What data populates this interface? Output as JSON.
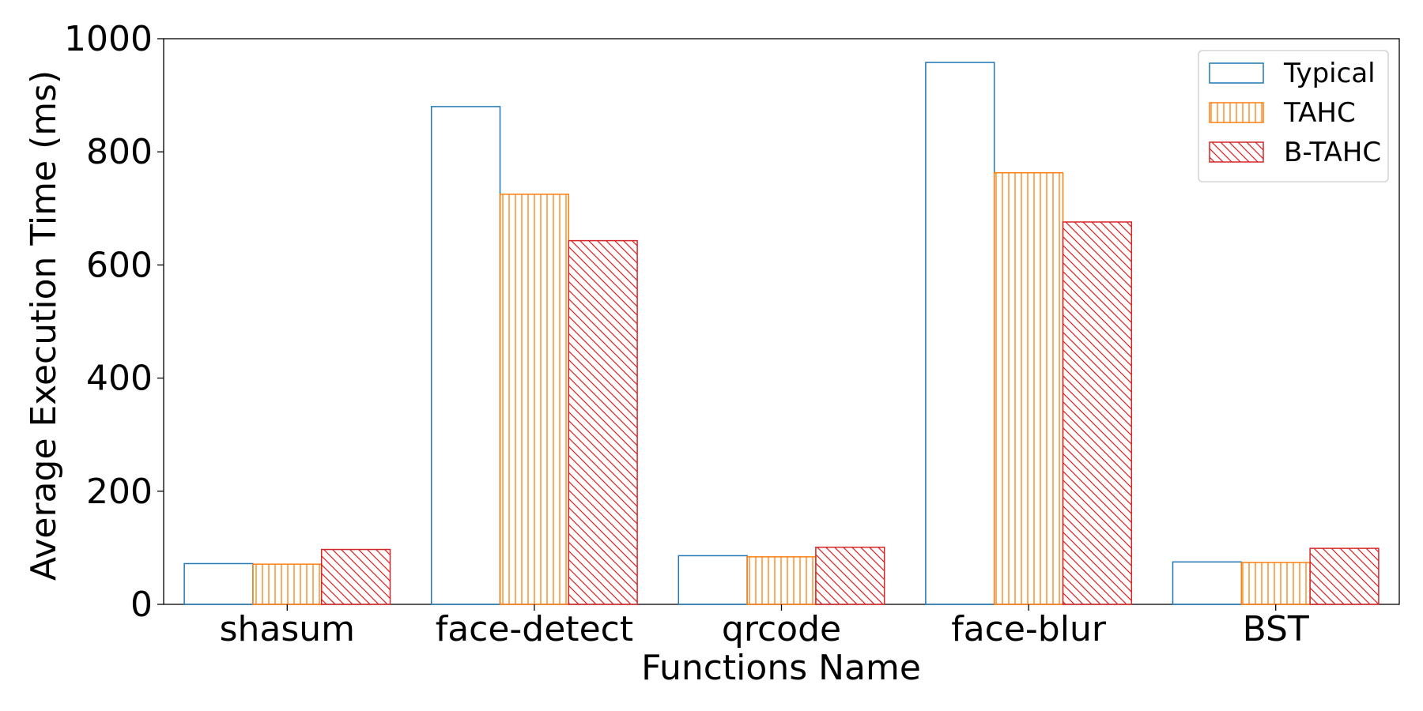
{
  "chart_data": {
    "type": "bar",
    "title": "",
    "xlabel": "Functions Name",
    "ylabel": "Average Execution Time (ms)",
    "categories": [
      "shasum",
      "face-detect",
      "qrcode",
      "face-blur",
      "BST"
    ],
    "ylim": [
      0,
      1000
    ],
    "yticks": [
      0,
      200,
      400,
      600,
      800,
      1000
    ],
    "grid": false,
    "legend_position": "top-right",
    "series": [
      {
        "name": "Typical",
        "color": "#1f77b4",
        "hatch": "none",
        "values": [
          72,
          880,
          86,
          958,
          75
        ]
      },
      {
        "name": "TAHC",
        "color": "#ff7f0e",
        "hatch": "vertical",
        "values": [
          71,
          725,
          84,
          763,
          74
        ]
      },
      {
        "name": "B-TAHC",
        "color": "#d62728",
        "hatch": "diagonal",
        "values": [
          97,
          643,
          101,
          676,
          99
        ]
      }
    ]
  }
}
